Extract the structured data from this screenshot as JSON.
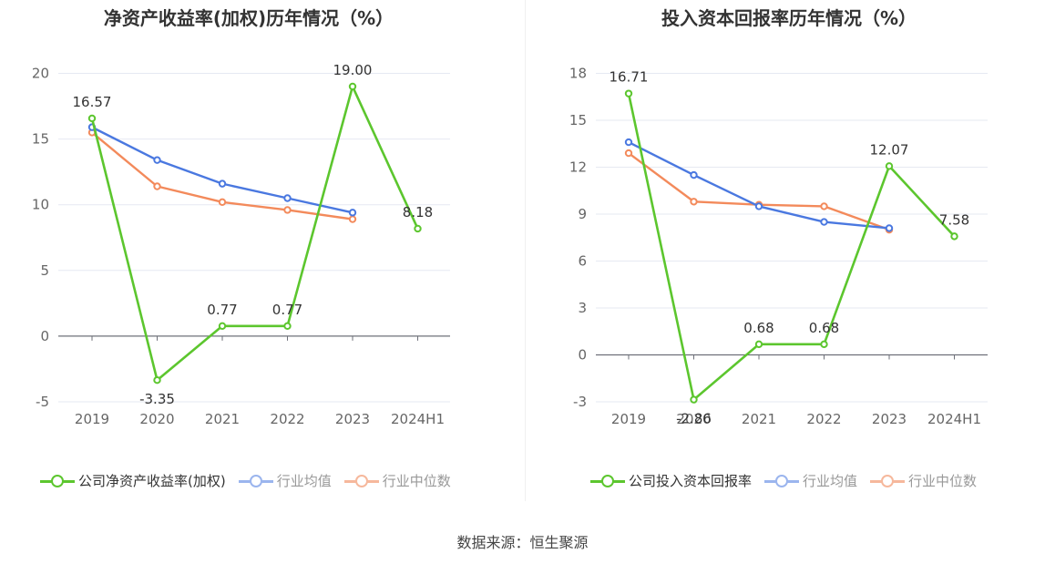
{
  "source": "数据来源：恒生聚源",
  "colors": {
    "company": "#5cc62e",
    "avg": "#4a78e0",
    "median": "#f38a5b"
  },
  "chart_data": [
    {
      "type": "line",
      "title": "净资产收益率(加权)历年情况（%）",
      "categories": [
        "2019",
        "2020",
        "2021",
        "2022",
        "2023",
        "2024H1"
      ],
      "ylim": [
        -5,
        20
      ],
      "yticks": [
        -5,
        0,
        5,
        10,
        15,
        20
      ],
      "series": [
        {
          "name": "公司净资产收益率(加权)",
          "key": "company",
          "values": [
            16.57,
            -3.35,
            0.77,
            0.77,
            19.0,
            8.18
          ],
          "labels": [
            "16.57",
            "-3.35",
            "0.77",
            "0.77",
            "19.00",
            "8.18"
          ]
        },
        {
          "name": "行业均值",
          "key": "avg",
          "values": [
            15.9,
            13.4,
            11.6,
            10.5,
            9.4,
            null
          ]
        },
        {
          "name": "行业中位数",
          "key": "median",
          "values": [
            15.5,
            11.4,
            10.2,
            9.6,
            8.9,
            null
          ]
        }
      ]
    },
    {
      "type": "line",
      "title": "投入资本回报率历年情况（%）",
      "categories": [
        "2019",
        "2020",
        "2021",
        "2022",
        "2023",
        "2024H1"
      ],
      "ylim": [
        -3,
        18
      ],
      "yticks": [
        -3,
        0,
        3,
        6,
        9,
        12,
        15,
        18
      ],
      "series": [
        {
          "name": "公司投入资本回报率",
          "key": "company",
          "values": [
            16.71,
            -2.86,
            0.68,
            0.68,
            12.07,
            7.58
          ],
          "labels": [
            "16.71",
            "-2.86",
            "0.68",
            "0.68",
            "12.07",
            "7.58"
          ]
        },
        {
          "name": "行业均值",
          "key": "avg",
          "values": [
            13.6,
            11.5,
            9.5,
            8.5,
            8.1,
            null
          ]
        },
        {
          "name": "行业中位数",
          "key": "median",
          "values": [
            12.9,
            9.8,
            9.6,
            9.5,
            8.0,
            null
          ]
        }
      ]
    }
  ]
}
